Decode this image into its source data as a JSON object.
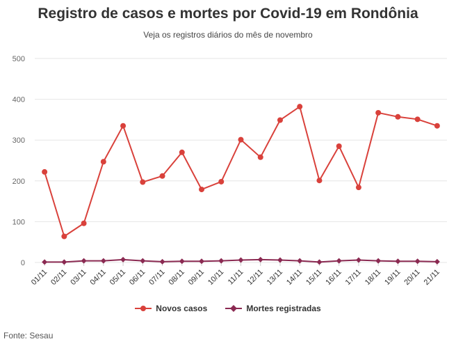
{
  "title": "Registro de casos e mortes por Covid-19 em Rondônia",
  "subtitle": "Veja os registros diários do mês de novembro",
  "source": "Fonte: Sesau",
  "colors": {
    "cases": "#d9413b",
    "deaths": "#8b2a52",
    "grid": "#e6e6e6",
    "axis_text": "#666666"
  },
  "legend": [
    {
      "label": "Novos casos",
      "symbol": "circle",
      "color": "#d9413b"
    },
    {
      "label": "Mortes registradas",
      "symbol": "diamond",
      "color": "#8b2a52"
    }
  ],
  "chart_data": {
    "type": "line",
    "categories": [
      "01/11",
      "02/11",
      "03/11",
      "04/11",
      "05/11",
      "06/11",
      "07/11",
      "08/11",
      "09/11",
      "10/11",
      "11/11",
      "12/11",
      "13/11",
      "14/11",
      "15/11",
      "16/11",
      "17/11",
      "18/11",
      "19/11",
      "20/11",
      "21/11"
    ],
    "ylim": [
      0,
      500
    ],
    "yticks": [
      0,
      100,
      200,
      300,
      400,
      500
    ],
    "grid": true,
    "legend_position": "bottom",
    "series": [
      {
        "name": "Novos casos",
        "color": "#d9413b",
        "marker": "circle",
        "values": [
          222,
          64,
          96,
          247,
          335,
          197,
          212,
          270,
          179,
          198,
          301,
          258,
          349,
          382,
          201,
          285,
          184,
          367,
          357,
          351,
          335
        ]
      },
      {
        "name": "Mortes registradas",
        "color": "#8b2a52",
        "marker": "diamond",
        "values": [
          1,
          1,
          4,
          4,
          7,
          4,
          2,
          3,
          3,
          4,
          6,
          7,
          6,
          4,
          1,
          4,
          6,
          4,
          3,
          3,
          2
        ]
      }
    ]
  }
}
